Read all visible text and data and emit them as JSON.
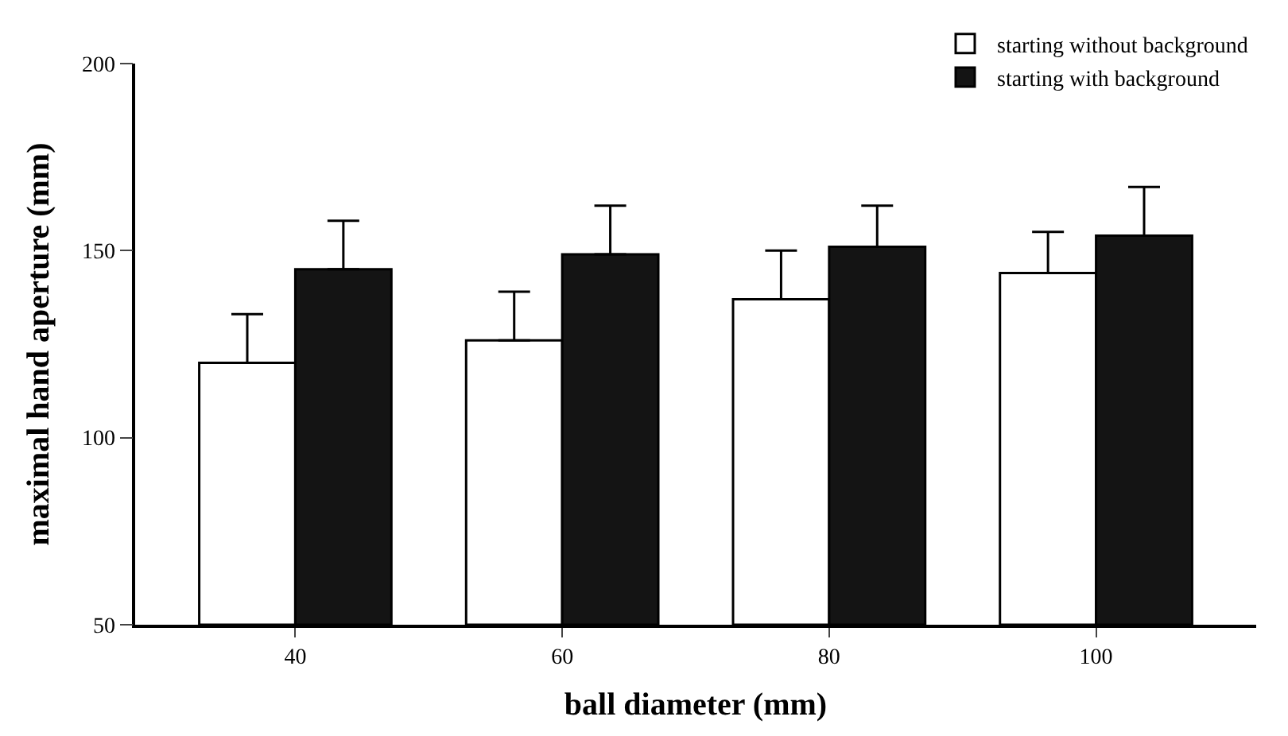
{
  "chart_data": {
    "type": "bar",
    "xlabel": "ball diameter (mm)",
    "ylabel": "maximal hand aperture (mm)",
    "categories": [
      "40",
      "60",
      "80",
      "100"
    ],
    "series": [
      {
        "name": "starting without background",
        "color": "#ffffff",
        "values": [
          120,
          126,
          137,
          144
        ],
        "errors": [
          [
            120,
            133
          ],
          [
            126,
            139
          ],
          [
            137,
            150
          ],
          [
            144,
            155
          ]
        ]
      },
      {
        "name": "starting with background",
        "color": "#141414",
        "values": [
          145,
          149,
          151,
          154
        ],
        "errors": [
          [
            145,
            158
          ],
          [
            149,
            162
          ],
          [
            151,
            162
          ],
          [
            154,
            167
          ]
        ]
      }
    ],
    "ylim": [
      50,
      200
    ],
    "yticks": [
      50,
      100,
      150,
      200
    ],
    "legend": "top right"
  }
}
